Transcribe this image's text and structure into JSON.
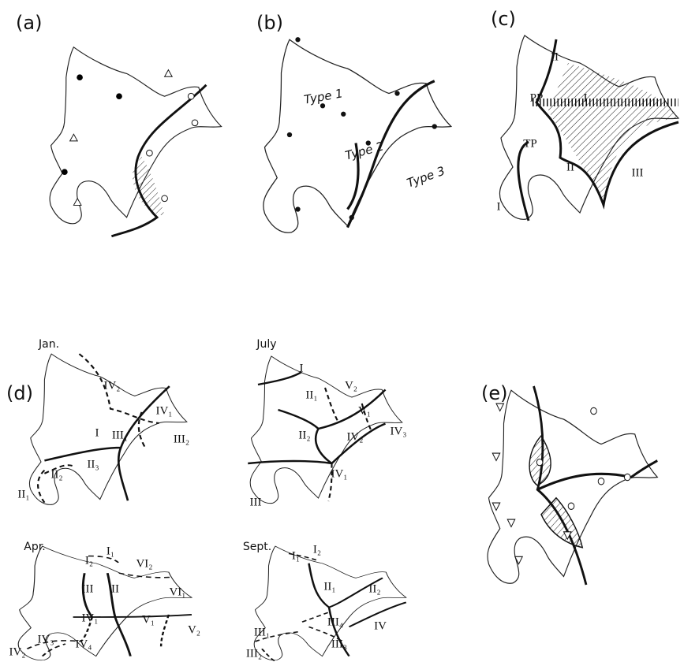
{
  "panels": [
    {
      "label": "(a)"
    },
    {
      "label": "(b)",
      "annotations": [
        "Type 1",
        "Type 2",
        "Type 3"
      ]
    },
    {
      "label": "(c)",
      "annotations": [
        "II",
        "PP",
        "I",
        "TP",
        "II",
        "I",
        "III"
      ]
    },
    {
      "label": "(d)",
      "maps": [
        {
          "month": "Jan.",
          "regions": [
            "IV₂",
            "I",
            "IV₁",
            "III₁",
            "III₂",
            "II₃",
            "II₂",
            "II₁"
          ]
        },
        {
          "month": "July",
          "regions": [
            "I",
            "V₂",
            "II₁",
            "V₁",
            "II₂",
            "IV₂",
            "IV₃",
            "IV₁",
            "III"
          ]
        },
        {
          "month": "Apr.",
          "regions": [
            "I₁",
            "I₂",
            "VI₂",
            "III",
            "II",
            "VI₁",
            "IV₁",
            "V₁",
            "V₂",
            "IV₃",
            "IV₄",
            "IV₂"
          ]
        },
        {
          "month": "Sept.",
          "regions": [
            "I₁",
            "I₂",
            "II₁",
            "II₂",
            "III₄",
            "IV",
            "III₁",
            "III₃",
            "III₂"
          ]
        }
      ]
    },
    {
      "label": "(e)"
    }
  ]
}
